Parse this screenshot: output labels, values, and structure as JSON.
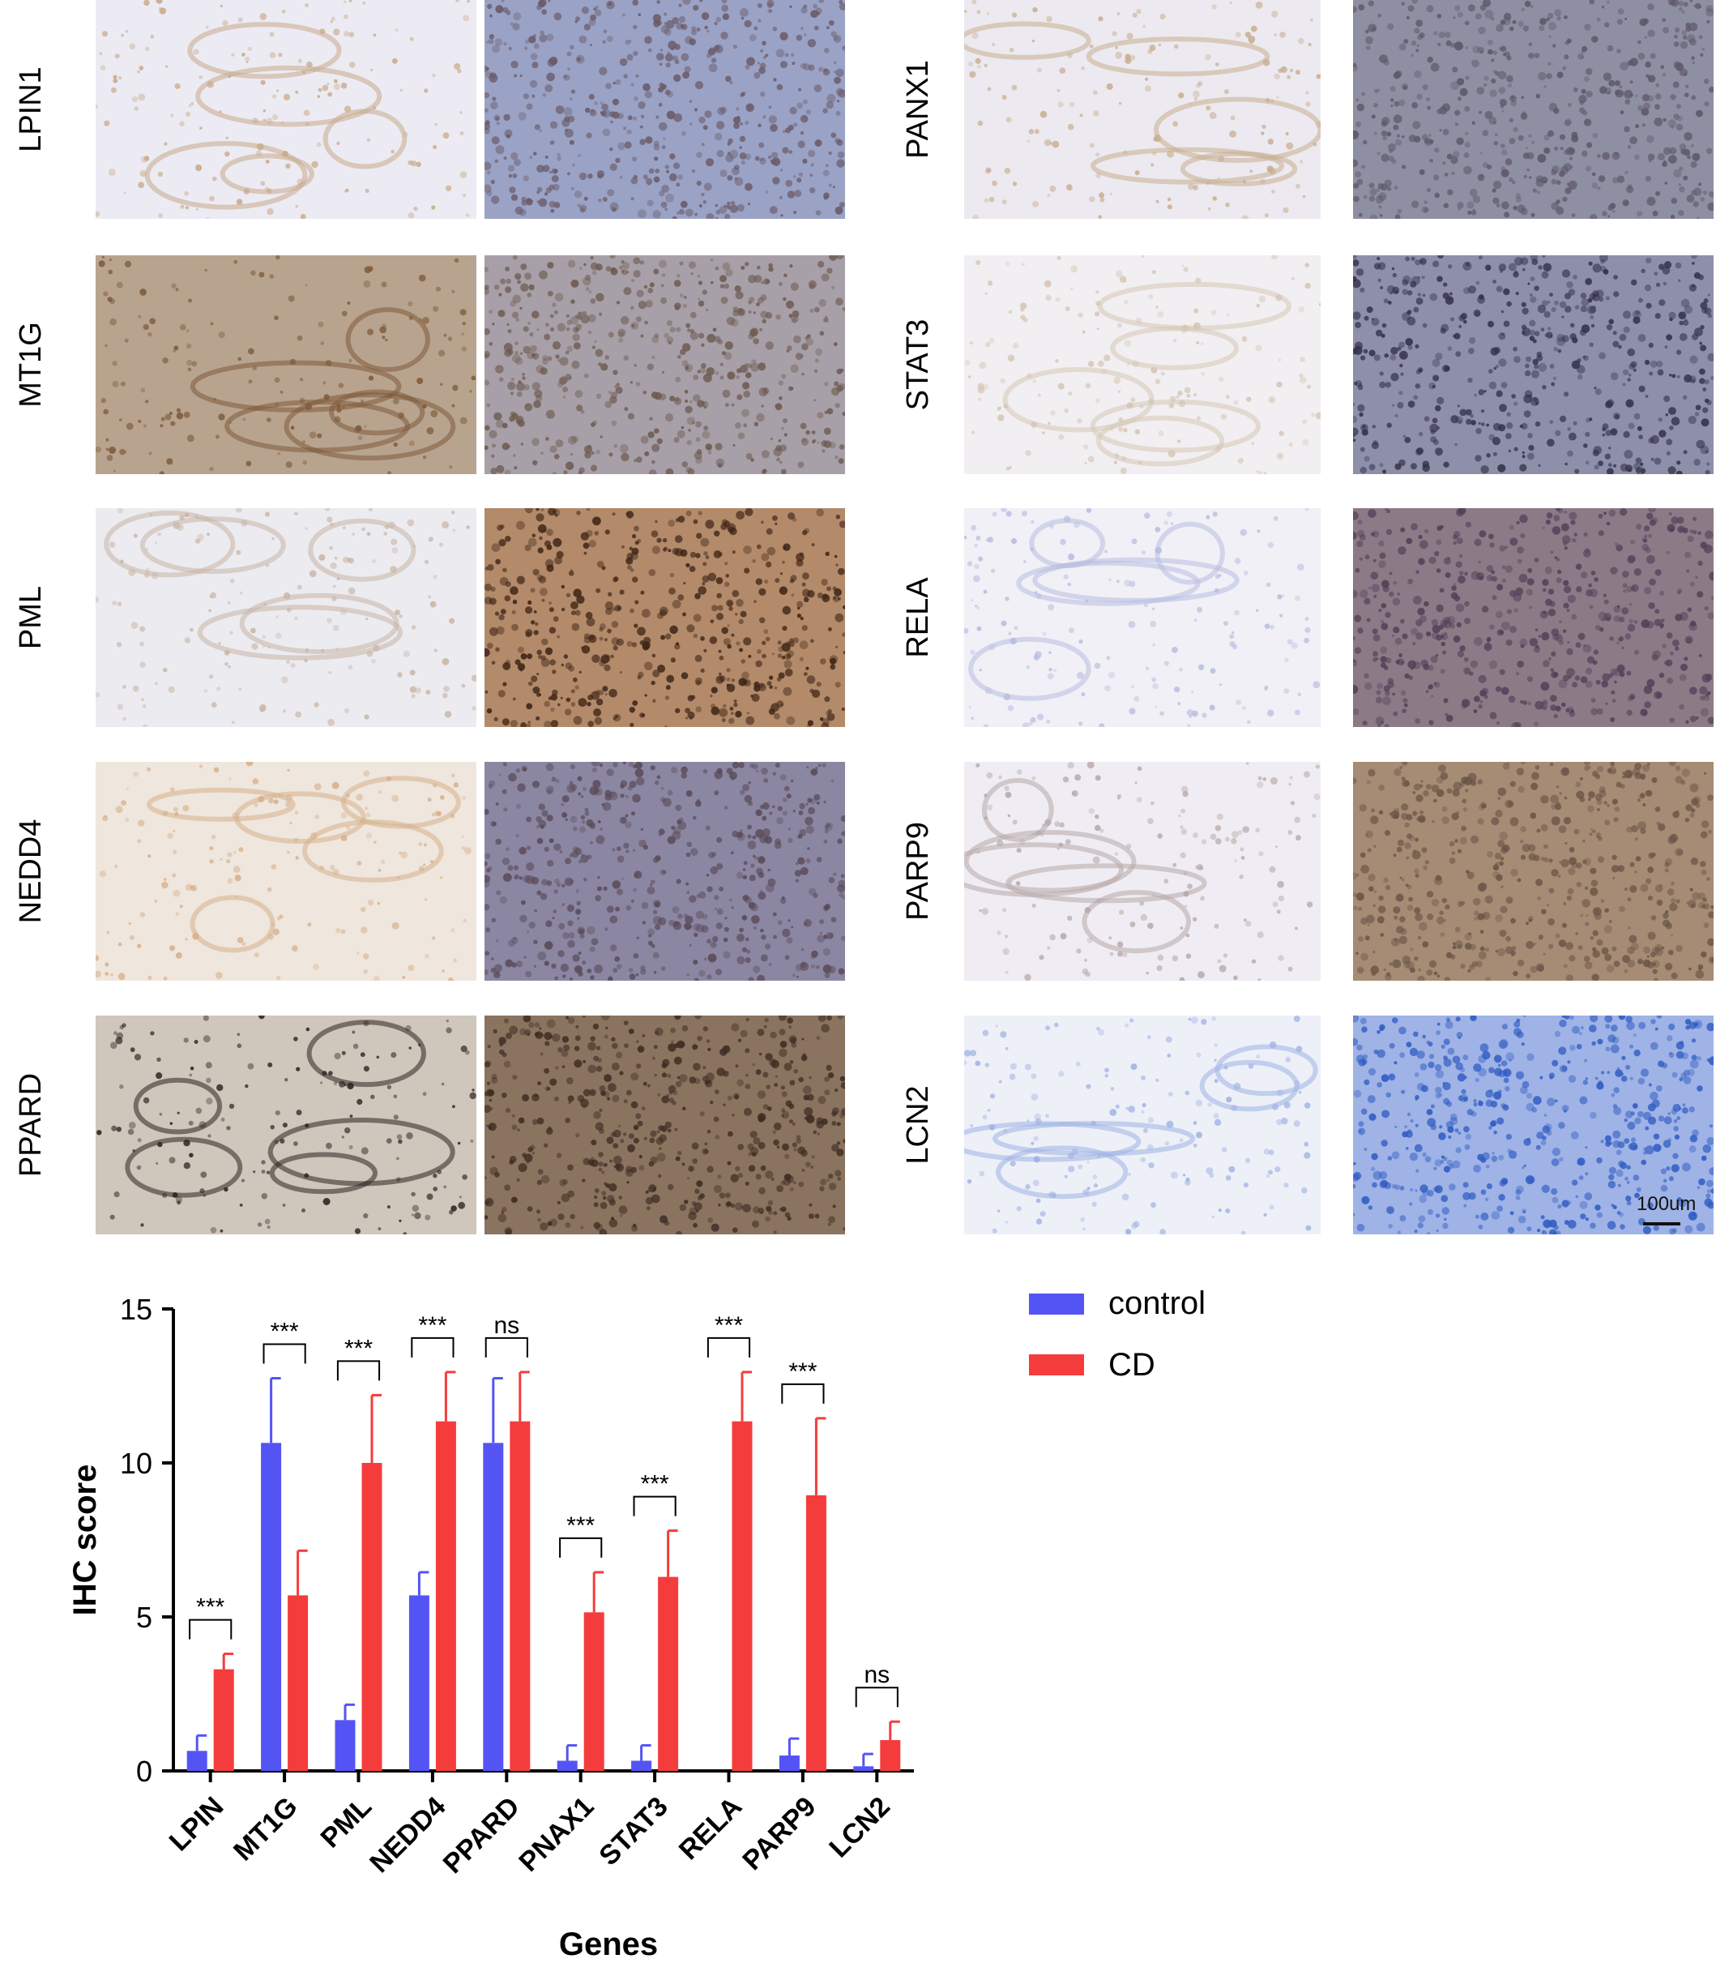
{
  "micrographs": {
    "left": [
      {
        "gene": "LPIN1",
        "control": {
          "stain": "#c9a98a",
          "bg": "#ecebf3"
        },
        "cd": {
          "stain": "#6a5a68",
          "bg": "#9aa3c6"
        }
      },
      {
        "gene": "MT1G",
        "control": {
          "stain": "#7d5a3a",
          "bg": "#b8a48e"
        },
        "cd": {
          "stain": "#6d5a50",
          "bg": "#a8a0a8"
        }
      },
      {
        "gene": "PML",
        "control": {
          "stain": "#c9b5a5",
          "bg": "#ecebf0"
        },
        "cd": {
          "stain": "#3e2416",
          "bg": "#b38b6a"
        }
      },
      {
        "gene": "NEDD4",
        "control": {
          "stain": "#d6b08a",
          "bg": "#efe6de"
        },
        "cd": {
          "stain": "#5a4a58",
          "bg": "#8b87a3"
        }
      },
      {
        "gene": "PPARD",
        "control": {
          "stain": "#2e2420",
          "bg": "#cfc6bc"
        },
        "cd": {
          "stain": "#3d2c22",
          "bg": "#8a7460"
        }
      }
    ],
    "right": [
      {
        "gene": "PANX1",
        "control": {
          "stain": "#c8ad90",
          "bg": "#eceaf0"
        },
        "cd": {
          "stain": "#5d5868",
          "bg": "#8f8fa4"
        }
      },
      {
        "gene": "STAT3",
        "control": {
          "stain": "#d5c6b5",
          "bg": "#f1eff2"
        },
        "cd": {
          "stain": "#34304a",
          "bg": "#8e90aa"
        }
      },
      {
        "gene": "RELA",
        "control": {
          "stain": "#b8bde0",
          "bg": "#f0f0f6"
        },
        "cd": {
          "stain": "#4e4058",
          "bg": "#8c7a86"
        }
      },
      {
        "gene": "PARP9",
        "control": {
          "stain": "#b7a8a8",
          "bg": "#efedf3"
        },
        "cd": {
          "stain": "#6a5548",
          "bg": "#a68c74"
        }
      },
      {
        "gene": "LCN2",
        "control": {
          "stain": "#9fb3e3",
          "bg": "#eef0f8"
        },
        "cd": {
          "stain": "#2f5bc2",
          "bg": "#9fb3e6"
        }
      }
    ],
    "scalebar_label": "100um"
  },
  "chart_data": {
    "type": "bar",
    "xlabel": "Genes",
    "ylabel": "IHC score",
    "ylim": [
      0,
      15
    ],
    "yticks": [
      0,
      5,
      10,
      15
    ],
    "categories": [
      "LPIN",
      "MT1G",
      "PML",
      "NEDD4",
      "PPARD",
      "PNAX1",
      "STAT3",
      "RELA",
      "PARP9",
      "LCN2"
    ],
    "series": [
      {
        "name": "control",
        "color": "#5454f5",
        "values": [
          0.65,
          10.65,
          1.65,
          5.7,
          10.65,
          0.33,
          0.33,
          0,
          0.5,
          0.15
        ],
        "errors": [
          0.5,
          2.1,
          0.5,
          0.75,
          2.1,
          0.5,
          0.5,
          0,
          0.55,
          0.4
        ]
      },
      {
        "name": "CD",
        "color": "#f53c3c",
        "values": [
          3.3,
          5.7,
          10.0,
          11.35,
          11.35,
          5.15,
          6.3,
          11.35,
          8.95,
          1.0
        ],
        "errors": [
          0.5,
          1.45,
          2.2,
          1.6,
          1.6,
          1.3,
          1.5,
          1.6,
          2.5,
          0.6
        ]
      }
    ],
    "significance": [
      "***",
      "***",
      "***",
      "***",
      "ns",
      "***",
      "***",
      "***",
      "***",
      "ns"
    ],
    "legend_position": "right"
  }
}
